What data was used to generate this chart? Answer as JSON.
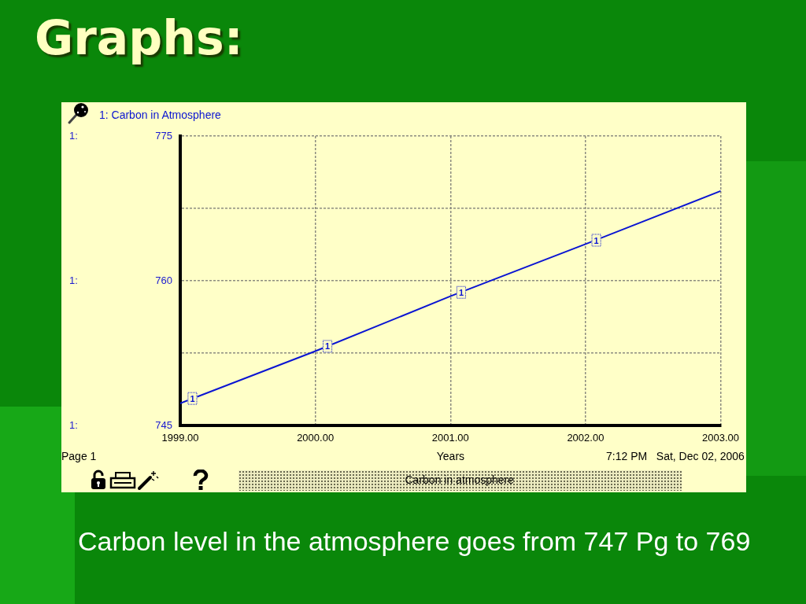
{
  "chart_data": {
    "type": "line",
    "title": "Graphs:",
    "xlabel": "Years",
    "x": [
      1999,
      2000,
      2001,
      2002,
      2003
    ],
    "series": [
      {
        "name": "1: Carbon in Atmosphere",
        "color": "#0a14d2",
        "values": [
          747.3,
          752.7,
          758.4,
          763.8,
          769.3
        ]
      }
    ],
    "xlim": [
      1999,
      2003
    ],
    "xticks": [
      {
        "value": 1999,
        "label": "1999.00"
      },
      {
        "value": 2000,
        "label": "2000.00"
      },
      {
        "value": 2001,
        "label": "2001.00"
      },
      {
        "value": 2002,
        "label": "2002.00"
      },
      {
        "value": 2003,
        "label": "2003.00"
      }
    ],
    "ylim": [
      745,
      775
    ],
    "yticks": [
      745,
      {
        "value": 752.5,
        "label": null
      },
      760,
      {
        "value": 767.5,
        "label": null
      },
      775
    ],
    "grid": true,
    "legend": "top left",
    "marker": "none",
    "annotations": [
      {
        "text": "1",
        "x": 1999.09,
        "y": 747.8
      },
      {
        "text": "1",
        "x": 2000.09,
        "y": 753.2
      },
      {
        "text": "1",
        "x": 2001.08,
        "y": 758.8
      },
      {
        "text": "1",
        "x": 2002.08,
        "y": 764.2
      },
      "1:",
      "1:",
      "1:",
      "Page 1",
      "7:12 PM   Sat, Dec 02, 2006",
      "Carbon in atmosphere",
      "Carbon level in the atmosphere goes from 747 Pg to 769"
    ]
  }
}
